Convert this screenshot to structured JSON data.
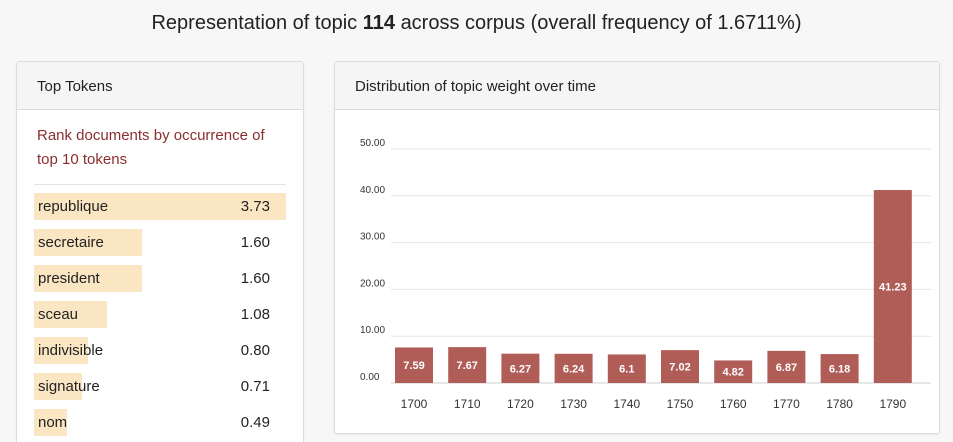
{
  "header": {
    "title_prefix": "Representation of topic",
    "topic_number": "114",
    "title_suffix": "across corpus (overall frequency of 1.6711%)"
  },
  "tokens_panel": {
    "title": "Top Tokens",
    "rank_link": "Rank documents by occurrence of top 10 tokens",
    "bar_color": "#fae6c2",
    "tokens": [
      {
        "name": "republique",
        "value": "3.73",
        "weight": 3.73
      },
      {
        "name": "secretaire",
        "value": "1.60",
        "weight": 1.6
      },
      {
        "name": "president",
        "value": "1.60",
        "weight": 1.6
      },
      {
        "name": "sceau",
        "value": "1.08",
        "weight": 1.08
      },
      {
        "name": "indivisible",
        "value": "0.80",
        "weight": 0.8
      },
      {
        "name": "signature",
        "value": "0.71",
        "weight": 0.71
      },
      {
        "name": "nom",
        "value": "0.49",
        "weight": 0.49
      }
    ]
  },
  "chart_panel": {
    "title": "Distribution of topic weight over time"
  },
  "chart_data": {
    "type": "bar",
    "categories": [
      "1700",
      "1710",
      "1720",
      "1730",
      "1740",
      "1750",
      "1760",
      "1770",
      "1780",
      "1790"
    ],
    "values": [
      7.59,
      7.67,
      6.27,
      6.24,
      6.1,
      7.02,
      4.82,
      6.87,
      6.18,
      41.23
    ],
    "value_labels": [
      "7.59",
      "7.67",
      "6.27",
      "6.24",
      "6.1",
      "7.02",
      "4.82",
      "6.87",
      "6.18",
      "41.23"
    ],
    "yticks": [
      "0.00",
      "10.00",
      "20.00",
      "30.00",
      "40.00",
      "50.00"
    ],
    "ylim": [
      0,
      50
    ],
    "grid": true,
    "bar_color": "#b05d58"
  }
}
